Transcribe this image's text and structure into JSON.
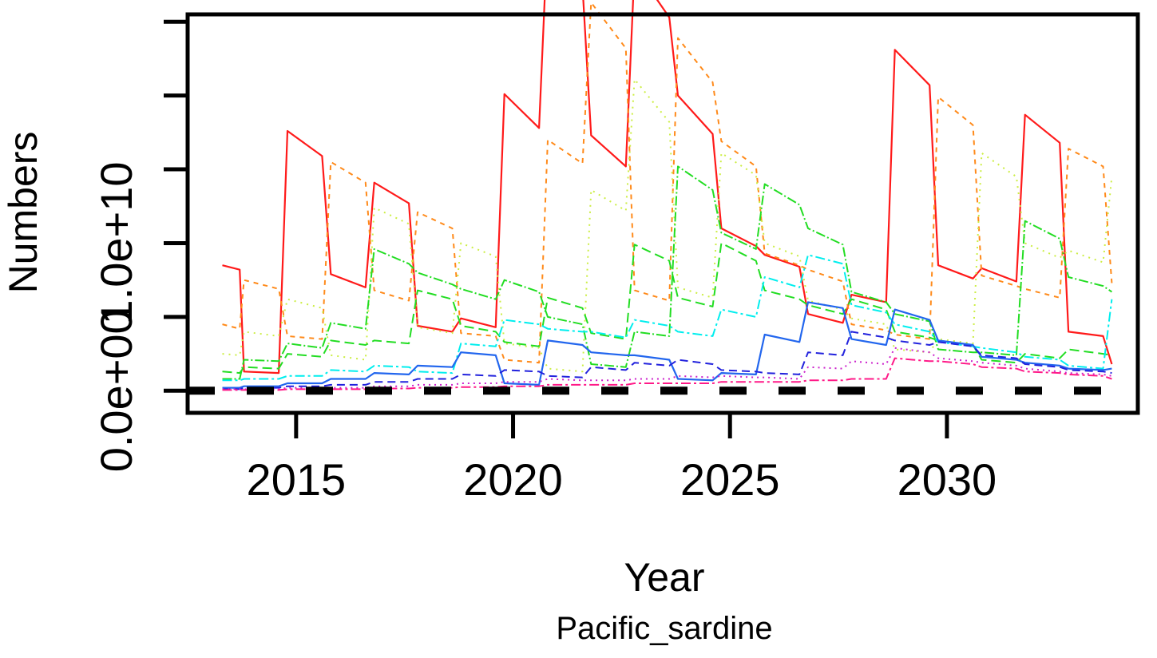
{
  "chart_data": {
    "type": "line",
    "title": "",
    "xlabel": "Year",
    "ylabel": "Numbers",
    "subtitle": "Pacific_sardine",
    "xlim": [
      2012.5,
      2034.4
    ],
    "ylim": [
      -1500000000.0,
      25500000000.0
    ],
    "x_ticks": [
      2015,
      2020,
      2025,
      2030
    ],
    "x_tick_labels": [
      "2015",
      "2020",
      "2025",
      "2030"
    ],
    "y_ticks": [
      0,
      5000000000.0,
      10000000000.0,
      15000000000.0,
      20000000000.0,
      25000000000.0
    ],
    "y_tick_labels": [
      "0.0e+00",
      "",
      "1.0e+10",
      "",
      "",
      ""
    ],
    "grid": false,
    "legend": "none",
    "x": [
      2013.3,
      2013.7,
      2013.8,
      2014.6,
      2014.8,
      2015.6,
      2015.8,
      2016.6,
      2016.8,
      2017.6,
      2017.8,
      2018.6,
      2018.8,
      2019.6,
      2019.8,
      2020.6,
      2020.8,
      2021.6,
      2021.8,
      2022.6,
      2022.8,
      2023.6,
      2023.8,
      2024.6,
      2024.8,
      2025.6,
      2025.8,
      2026.6,
      2026.8,
      2027.6,
      2027.8,
      2028.6,
      2028.8,
      2029.6,
      2029.8,
      2030.6,
      2030.8,
      2031.6,
      2031.8,
      2032.6,
      2032.8,
      2033.6,
      2033.8
    ],
    "series": [
      {
        "color": "#ff1a1a",
        "dash": "solid",
        "width": 2.2,
        "values": [
          0.85,
          0.82,
          0.13,
          0.12,
          1.76,
          1.59,
          0.79,
          0.7,
          1.41,
          1.27,
          0.44,
          0.4,
          0.49,
          0.43,
          2.01,
          1.78,
          3.13,
          2.74,
          1.73,
          1.52,
          2.87,
          2.53,
          2.0,
          1.74,
          1.1,
          0.98,
          0.92,
          0.84,
          0.52,
          0.46,
          0.65,
          0.6,
          2.31,
          2.07,
          0.85,
          0.76,
          0.83,
          0.74,
          1.87,
          1.68,
          0.4,
          0.37,
          0.18
        ]
      },
      {
        "color": "#ff8a1a",
        "dash": "6,6",
        "width": 2,
        "values": [
          0.45,
          0.42,
          0.75,
          0.69,
          0.37,
          0.35,
          1.55,
          1.41,
          0.68,
          0.61,
          1.21,
          1.1,
          0.39,
          0.37,
          0.21,
          0.19,
          1.7,
          1.54,
          2.63,
          2.32,
          0.68,
          0.61,
          2.39,
          2.09,
          1.69,
          1.52,
          0.93,
          0.85,
          0.82,
          0.74,
          0.45,
          0.41,
          0.38,
          0.35,
          1.99,
          1.8,
          0.78,
          0.71,
          0.69,
          0.63,
          1.64,
          1.52,
          0.73
        ]
      },
      {
        "color": "#ccee44",
        "dash": "2,6",
        "width": 2,
        "values": [
          0.25,
          0.24,
          0.4,
          0.37,
          0.62,
          0.56,
          0.24,
          0.21,
          1.24,
          1.13,
          0.43,
          0.39,
          1.0,
          0.91,
          0.32,
          0.29,
          0.15,
          0.13,
          1.36,
          1.22,
          2.11,
          1.82,
          0.7,
          0.63,
          1.61,
          1.46,
          1.0,
          0.91,
          0.61,
          0.55,
          0.49,
          0.45,
          0.28,
          0.26,
          0.35,
          0.32,
          1.61,
          1.45,
          1.0,
          0.9,
          0.95,
          0.87,
          1.45
        ]
      },
      {
        "color": "#22dd22",
        "dash": "12,3,2,3",
        "width": 2,
        "values": [
          0.08,
          0.08,
          0.21,
          0.2,
          0.32,
          0.29,
          0.46,
          0.42,
          0.96,
          0.86,
          0.8,
          0.72,
          0.69,
          0.62,
          0.75,
          0.67,
          0.5,
          0.45,
          0.18,
          0.16,
          0.4,
          0.37,
          1.52,
          1.36,
          1.07,
          0.96,
          1.4,
          1.26,
          1.1,
          0.99,
          0.67,
          0.6,
          0.52,
          0.47,
          0.28,
          0.26,
          0.26,
          0.24,
          1.15,
          1.03,
          0.77,
          0.71,
          0.67
        ]
      },
      {
        "color": "#22dd22",
        "dash": "12,6",
        "width": 2,
        "values": [
          0.13,
          0.12,
          0.16,
          0.15,
          0.25,
          0.23,
          0.34,
          0.31,
          0.34,
          0.32,
          0.68,
          0.62,
          0.44,
          0.4,
          0.33,
          0.3,
          0.63,
          0.56,
          0.39,
          0.35,
          0.99,
          0.88,
          0.63,
          0.57,
          1.0,
          0.88,
          0.68,
          0.62,
          0.58,
          0.52,
          0.62,
          0.55,
          0.4,
          0.36,
          0.34,
          0.31,
          0.21,
          0.19,
          0.25,
          0.22,
          0.28,
          0.25,
          0.24
        ]
      },
      {
        "color": "#00eeee",
        "dash": "12,4,3,4",
        "width": 2,
        "values": [
          0.07,
          0.07,
          0.08,
          0.08,
          0.1,
          0.1,
          0.14,
          0.13,
          0.17,
          0.16,
          0.13,
          0.12,
          0.32,
          0.3,
          0.48,
          0.45,
          0.42,
          0.4,
          0.4,
          0.36,
          0.48,
          0.44,
          0.4,
          0.37,
          0.55,
          0.5,
          0.77,
          0.7,
          0.92,
          0.86,
          0.58,
          0.53,
          0.45,
          0.4,
          0.33,
          0.3,
          0.29,
          0.26,
          0.23,
          0.21,
          0.17,
          0.15,
          0.62
        ]
      },
      {
        "color": "#2266ee",
        "dash": "solid",
        "width": 2.2,
        "values": [
          0.02,
          0.02,
          0.03,
          0.03,
          0.05,
          0.05,
          0.08,
          0.08,
          0.12,
          0.11,
          0.17,
          0.16,
          0.26,
          0.24,
          0.05,
          0.04,
          0.34,
          0.31,
          0.26,
          0.24,
          0.24,
          0.21,
          0.08,
          0.07,
          0.12,
          0.11,
          0.38,
          0.33,
          0.6,
          0.56,
          0.35,
          0.31,
          0.55,
          0.48,
          0.34,
          0.31,
          0.23,
          0.21,
          0.19,
          0.17,
          0.15,
          0.14,
          0.15
        ]
      },
      {
        "color": "#2222dd",
        "dash": "10,6",
        "width": 2,
        "values": [
          0.01,
          0.01,
          0.02,
          0.02,
          0.03,
          0.03,
          0.04,
          0.04,
          0.06,
          0.06,
          0.08,
          0.08,
          0.11,
          0.1,
          0.14,
          0.13,
          0.1,
          0.09,
          0.16,
          0.14,
          0.19,
          0.17,
          0.21,
          0.18,
          0.14,
          0.13,
          0.12,
          0.11,
          0.26,
          0.24,
          0.4,
          0.36,
          0.34,
          0.31,
          0.33,
          0.3,
          0.24,
          0.22,
          0.18,
          0.16,
          0.14,
          0.13,
          0.12
        ]
      },
      {
        "color": "#cc22cc",
        "dash": "2,5",
        "width": 2,
        "values": [
          0.01,
          0.01,
          0.01,
          0.01,
          0.02,
          0.02,
          0.02,
          0.02,
          0.03,
          0.03,
          0.04,
          0.04,
          0.05,
          0.05,
          0.06,
          0.06,
          0.08,
          0.07,
          0.07,
          0.07,
          0.08,
          0.08,
          0.1,
          0.09,
          0.1,
          0.09,
          0.09,
          0.08,
          0.16,
          0.15,
          0.2,
          0.18,
          0.29,
          0.26,
          0.22,
          0.2,
          0.19,
          0.17,
          0.15,
          0.13,
          0.12,
          0.11,
          0.1
        ]
      },
      {
        "color": "#ff1a88",
        "dash": "12,4,3,4",
        "width": 2,
        "values": [
          0.005,
          0.005,
          0.005,
          0.005,
          0.01,
          0.01,
          0.01,
          0.01,
          0.015,
          0.015,
          0.02,
          0.02,
          0.025,
          0.025,
          0.03,
          0.03,
          0.04,
          0.04,
          0.04,
          0.04,
          0.05,
          0.05,
          0.05,
          0.05,
          0.06,
          0.06,
          0.06,
          0.06,
          0.07,
          0.07,
          0.08,
          0.08,
          0.22,
          0.2,
          0.2,
          0.18,
          0.16,
          0.15,
          0.13,
          0.12,
          0.11,
          0.1,
          0.08
        ]
      }
    ],
    "reference_line": {
      "y": 0,
      "color": "#000000",
      "dash": "long-dash",
      "x_range": [
        2012.5,
        2033.6
      ]
    }
  }
}
